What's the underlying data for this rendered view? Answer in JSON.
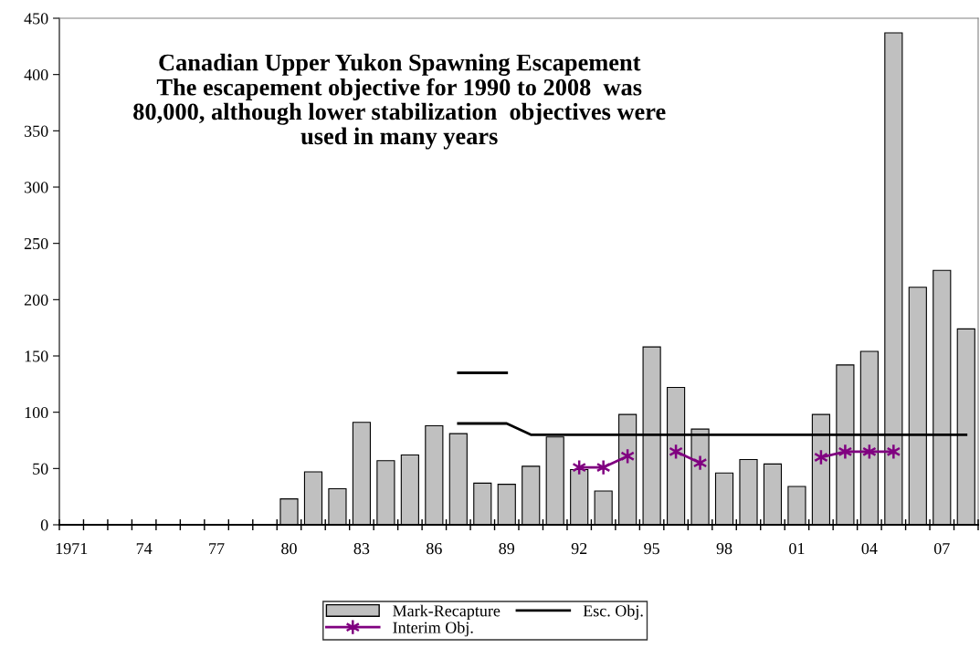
{
  "chart_data": {
    "type": "bar",
    "title": "Canadian Upper Yukon Spawning Escapement\nThe escapement objective for 1990 to 2008  was\n80,000, although lower stabilization  objectives were\nused in many years",
    "categories": [
      "1971",
      null,
      null,
      "74",
      null,
      null,
      "77",
      null,
      null,
      "80",
      null,
      null,
      "83",
      null,
      null,
      "86",
      null,
      null,
      "89",
      null,
      null,
      "92",
      null,
      null,
      "95",
      null,
      null,
      "98",
      null,
      null,
      "01",
      null,
      null,
      "04",
      null,
      null,
      "07",
      null
    ],
    "series": [
      {
        "name": "Mark-Recapture",
        "color": "#c0c0c0",
        "values": [
          null,
          null,
          null,
          null,
          null,
          null,
          null,
          null,
          null,
          23,
          47,
          32,
          91,
          57,
          62,
          88,
          81,
          37,
          36,
          52,
          78,
          49,
          30,
          98,
          158,
          122,
          85,
          46,
          58,
          54,
          34,
          98,
          142,
          154,
          437,
          211,
          226,
          174
        ]
      },
      {
        "name": "Esc. Obj.",
        "type": "line",
        "color": "#000000",
        "values": [
          null,
          null,
          null,
          null,
          null,
          null,
          null,
          null,
          null,
          null,
          null,
          null,
          null,
          null,
          null,
          null,
          90,
          90,
          90,
          80,
          80,
          80,
          80,
          80,
          80,
          80,
          80,
          80,
          80,
          80,
          80,
          80,
          80,
          80,
          80,
          80,
          80,
          80
        ]
      },
      {
        "type": "line",
        "color": "#000000",
        "values": [
          null,
          null,
          null,
          null,
          null,
          null,
          null,
          null,
          null,
          null,
          null,
          null,
          null,
          null,
          null,
          null,
          135,
          135,
          135,
          null,
          null,
          null,
          null,
          null,
          null,
          null,
          null,
          null,
          null,
          null,
          null,
          null,
          null,
          null,
          null,
          null,
          null,
          null
        ]
      },
      {
        "name": "Interim Obj.",
        "type": "line",
        "color": "#800080",
        "marker": "cross",
        "values": [
          null,
          null,
          null,
          null,
          null,
          null,
          null,
          null,
          null,
          null,
          null,
          null,
          null,
          null,
          null,
          null,
          null,
          null,
          null,
          null,
          null,
          51,
          51,
          61,
          null,
          65,
          55,
          null,
          null,
          null,
          null,
          60,
          65,
          65,
          65,
          null,
          null,
          null
        ]
      }
    ],
    "ylim": [
      0,
      450
    ],
    "yticks": [
      0,
      50,
      100,
      150,
      200,
      250,
      300,
      350,
      400,
      450
    ],
    "grid": false,
    "legend": "bottom"
  }
}
